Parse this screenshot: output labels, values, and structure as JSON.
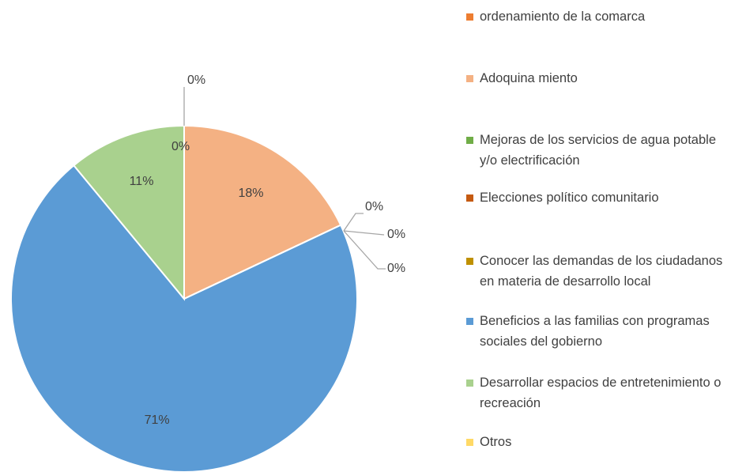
{
  "chart_data": {
    "type": "pie",
    "categories": [
      "ordenamiento de la comarca",
      "Adoquina miento",
      "Mejoras de los servicios de agua potable y/o electrificación",
      "Elecciones político comunitario",
      "Conocer las demandas de los ciudadanos en materia de desarrollo local",
      "Beneficios a las familias con programas sociales del gobierno",
      "Desarrollar espacios de entretenimiento o recreación",
      "Otros"
    ],
    "values": [
      0,
      18,
      0,
      0,
      0,
      71,
      11,
      0
    ],
    "value_labels": [
      "0%",
      "18%",
      "0%",
      "0%",
      "0%",
      "71%",
      "11%",
      "0%"
    ],
    "colors": [
      "#ED7D31",
      "#F4B183",
      "#70AD47",
      "#C55A11",
      "#BF9000",
      "#5B9BD5",
      "#A9D18E",
      "#FFD966"
    ],
    "legend": "right"
  }
}
